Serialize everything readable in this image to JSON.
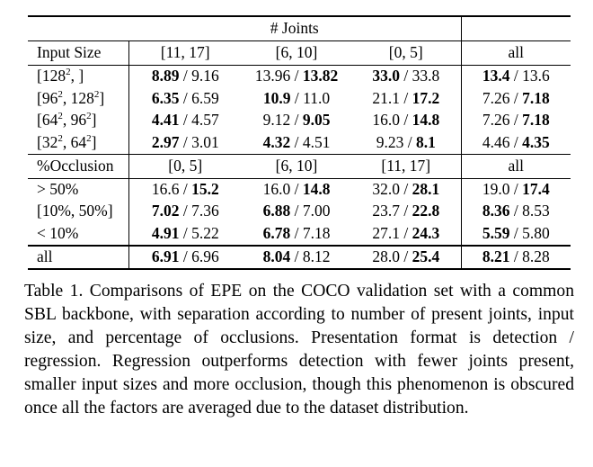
{
  "table": {
    "group_header": "# Joints",
    "section1": {
      "label_header": "Input Size",
      "columns": [
        "[11, 17]",
        "[6, 10]",
        "[0, 5]",
        "all"
      ],
      "rows": [
        {
          "base": "128",
          "exp": "2",
          "rest": ", ]",
          "cells": [
            [
              "8.89",
              "9.16",
              "det"
            ],
            [
              "13.96",
              "13.82",
              "reg"
            ],
            [
              "33.0",
              "33.8",
              "det"
            ],
            [
              "13.4",
              "13.6",
              "det"
            ]
          ]
        },
        {
          "pre": "[96",
          "e1": "2",
          "mid": ", 128",
          "e2": "2",
          "post": "]",
          "cells": [
            [
              "6.35",
              "6.59",
              "det"
            ],
            [
              "10.9",
              "11.0",
              "det"
            ],
            [
              "21.1",
              "17.2",
              "reg"
            ],
            [
              "7.26",
              "7.18",
              "reg"
            ]
          ]
        },
        {
          "pre": "[64",
          "e1": "2",
          "mid": ", 96",
          "e2": "2",
          "post": "]",
          "cells": [
            [
              "4.41",
              "4.57",
              "det"
            ],
            [
              "9.12",
              "9.05",
              "reg"
            ],
            [
              "16.0",
              "14.8",
              "reg"
            ],
            [
              "7.26",
              "7.18",
              "reg"
            ]
          ]
        },
        {
          "pre": "[32",
          "e1": "2",
          "mid": ", 64",
          "e2": "2",
          "post": "]",
          "cells": [
            [
              "2.97",
              "3.01",
              "det"
            ],
            [
              "4.32",
              "4.51",
              "det"
            ],
            [
              "9.23",
              "8.1",
              "reg"
            ],
            [
              "4.46",
              "4.35",
              "reg"
            ]
          ]
        }
      ]
    },
    "section2": {
      "label_header": "%Occlusion",
      "columns": [
        "[0, 5]",
        "[6, 10]",
        "[11, 17]",
        "all"
      ],
      "rows": [
        {
          "label": "> 50%",
          "cells": [
            [
              "16.6",
              "15.2",
              "reg"
            ],
            [
              "16.0",
              "14.8",
              "reg"
            ],
            [
              "32.0",
              "28.1",
              "reg"
            ],
            [
              "19.0",
              "17.4",
              "reg"
            ]
          ]
        },
        {
          "label": "[10%, 50%]",
          "cells": [
            [
              "7.02",
              "7.36",
              "det"
            ],
            [
              "6.88",
              "7.00",
              "det"
            ],
            [
              "23.7",
              "22.8",
              "reg"
            ],
            [
              "8.36",
              "8.53",
              "det"
            ]
          ]
        },
        {
          "label": "< 10%",
          "cells": [
            [
              "4.91",
              "5.22",
              "det"
            ],
            [
              "6.78",
              "7.18",
              "det"
            ],
            [
              "27.1",
              "24.3",
              "reg"
            ],
            [
              "5.59",
              "5.80",
              "det"
            ]
          ]
        }
      ]
    },
    "total_row": {
      "label": "all",
      "cells": [
        [
          "6.91",
          "6.96",
          "det"
        ],
        [
          "8.04",
          "8.12",
          "det"
        ],
        [
          "28.0",
          "25.4",
          "reg"
        ],
        [
          "8.21",
          "8.28",
          "det"
        ]
      ]
    }
  },
  "caption": "Table 1. Comparisons of EPE on the COCO validation set with a common SBL backbone, with separation according to number of present joints, input size, and percentage of occlusions. Presentation format is detection / regression. Regression outperforms detection with fewer joints present, smaller input sizes and more occlusion, though this phenomenon is obscured once all the factors are averaged due to the dataset distribution."
}
